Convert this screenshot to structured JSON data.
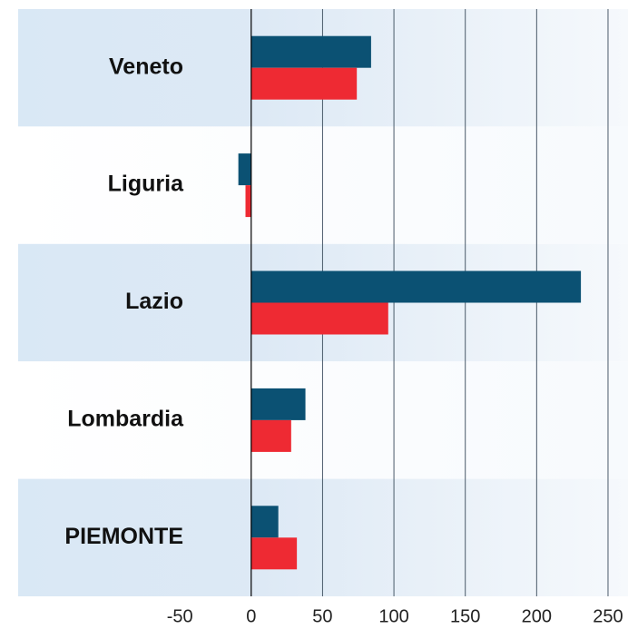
{
  "chart_data": {
    "type": "hbar",
    "categories": [
      "Veneto",
      "Liguria",
      "Lazio",
      "Lombardia",
      "PIEMONTE"
    ],
    "series": [
      {
        "color": "#0b5173",
        "values": [
          84,
          -9,
          231,
          38,
          19
        ]
      },
      {
        "color": "#ee2a33",
        "values": [
          74,
          -4,
          96,
          28,
          32
        ]
      }
    ],
    "xlim": [
      -176,
      264
    ],
    "xticks": [
      -50,
      0,
      50,
      100,
      150,
      200,
      250
    ],
    "grid": true
  }
}
